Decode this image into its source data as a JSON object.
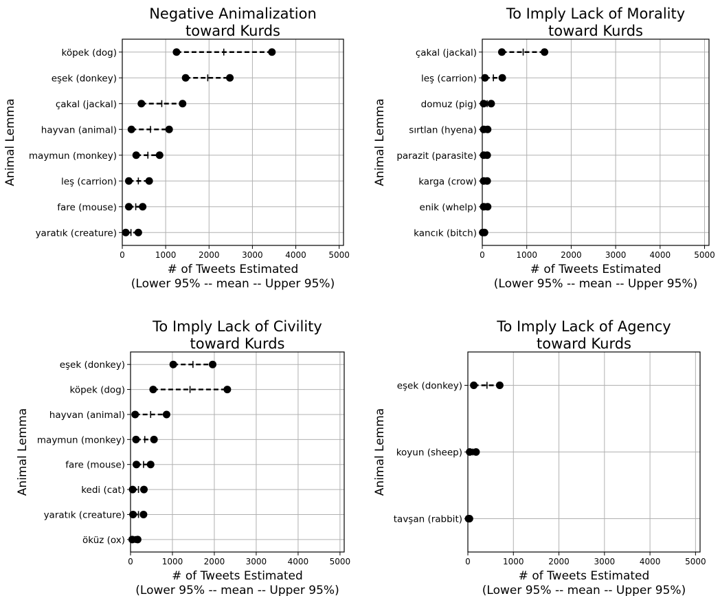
{
  "chart_data": [
    {
      "type": "dot-interval",
      "title": "Negative Animalization\ntoward   Kurds",
      "xlabel": "# of Tweets Estimated\n(Lower 95% -- mean -- Upper 95%)",
      "ylabel": "Animal Lemma",
      "xlim": [
        0,
        5100
      ],
      "xticks": [
        0,
        1000,
        2000,
        3000,
        4000,
        5000
      ],
      "grid": true,
      "categories": [
        "köpek (dog)",
        "eşek (donkey)",
        "çakal (jackal)",
        "hayvan (animal)",
        "maymun (monkey)",
        "leş (carrion)",
        "fare (mouse)",
        "yaratık (creature)"
      ],
      "lower": [
        1250,
        1460,
        440,
        210,
        320,
        150,
        150,
        80
      ],
      "mean": [
        2340,
        1970,
        910,
        650,
        590,
        370,
        310,
        200
      ],
      "upper": [
        3450,
        2480,
        1390,
        1080,
        860,
        620,
        470,
        370
      ]
    },
    {
      "type": "dot-interval",
      "title": "To Imply Lack of Morality\ntoward   Kurds",
      "xlabel": "# of Tweets Estimated\n(Lower 95% -- mean -- Upper 95%)",
      "ylabel": "Animal Lemma",
      "xlim": [
        0,
        5100
      ],
      "xticks": [
        0,
        1000,
        2000,
        3000,
        4000,
        5000
      ],
      "grid": true,
      "categories": [
        "çakal (jackal)",
        "leş (carrion)",
        "domuz (pig)",
        "sırtlan (hyena)",
        "parazit (parasite)",
        "karga (crow)",
        "enik (whelp)",
        "kancık (bitch)"
      ],
      "lower": [
        440,
        60,
        30,
        30,
        30,
        30,
        30,
        10
      ],
      "mean": [
        920,
        250,
        110,
        75,
        70,
        70,
        75,
        30
      ],
      "upper": [
        1400,
        450,
        200,
        120,
        110,
        110,
        120,
        50
      ]
    },
    {
      "type": "dot-interval",
      "title": "To Imply Lack of Civility\ntoward   Kurds",
      "xlabel": "# of Tweets Estimated\n(Lower 95% -- mean -- Upper 95%)",
      "ylabel": "Animal Lemma",
      "xlim": [
        0,
        5100
      ],
      "xticks": [
        0,
        1000,
        2000,
        3000,
        4000,
        5000
      ],
      "grid": true,
      "categories": [
        "eşek (donkey)",
        "köpek (dog)",
        "hayvan (animal)",
        "maymun (monkey)",
        "fare (mouse)",
        "kedi (cat)",
        "yaratık (creature)",
        "öküz (ox)"
      ],
      "lower": [
        1020,
        540,
        110,
        130,
        140,
        50,
        60,
        40
      ],
      "mean": [
        1490,
        1420,
        480,
        340,
        310,
        190,
        190,
        110
      ],
      "upper": [
        1960,
        2310,
        860,
        560,
        480,
        320,
        310,
        170
      ]
    },
    {
      "type": "dot-interval",
      "title": "To Imply Lack of Agency\ntoward   Kurds",
      "xlabel": "# of Tweets Estimated\n(Lower 95% -- mean -- Upper 95%)",
      "ylabel": "Animal Lemma",
      "xlim": [
        0,
        5100
      ],
      "xticks": [
        0,
        1000,
        2000,
        3000,
        4000,
        5000
      ],
      "grid": true,
      "categories": [
        "eşek (donkey)",
        "koyun (sheep)",
        "tavşan (rabbit)"
      ],
      "lower": [
        130,
        40,
        15
      ],
      "mean": [
        420,
        110,
        25
      ],
      "upper": [
        700,
        180,
        35
      ]
    }
  ]
}
